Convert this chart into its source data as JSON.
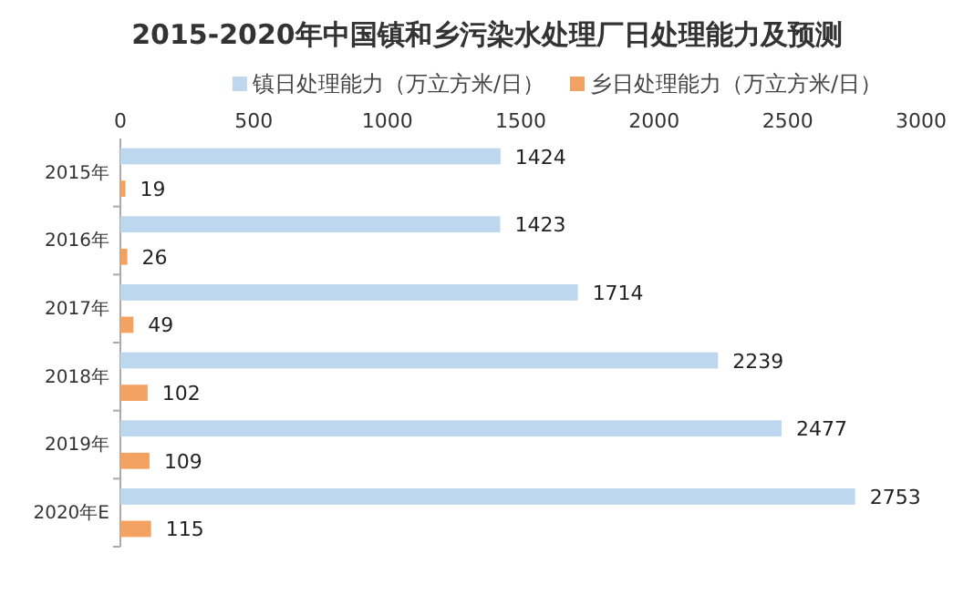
{
  "chart_data": {
    "type": "bar",
    "orientation": "horizontal",
    "title": "2015-2020年中国镇和乡污染水处理厂日处理能力及预测",
    "categories": [
      "2015年",
      "2016年",
      "2017年",
      "2018年",
      "2019年",
      "2020年E"
    ],
    "series": [
      {
        "name": "镇日处理能力（万立方米/日）",
        "color": "#bdd7ee",
        "values": [
          1424,
          1423,
          1714,
          2239,
          2477,
          2753
        ]
      },
      {
        "name": "乡日处理能力（万立方米/日）",
        "color": "#f4a261",
        "values": [
          19,
          26,
          49,
          102,
          109,
          115
        ]
      }
    ],
    "xlim": [
      0,
      3000
    ],
    "xticks": [
      0,
      500,
      1000,
      1500,
      2000,
      2500,
      3000
    ],
    "data_labels": true,
    "legend": "top",
    "grid": false
  }
}
